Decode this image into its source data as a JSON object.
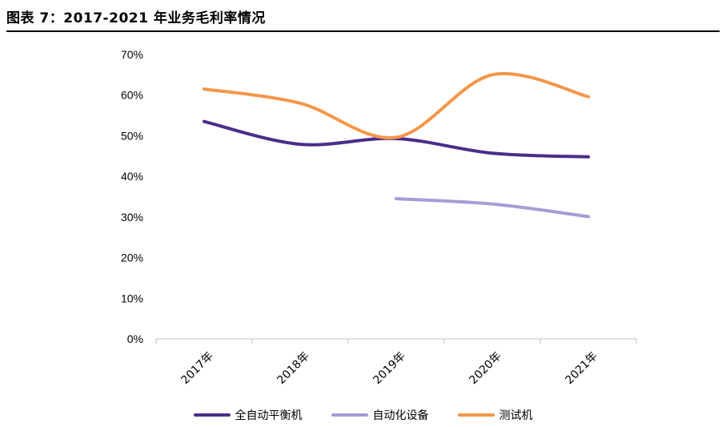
{
  "figure": {
    "title": "图表 7：2017-2021 年业务毛利率情况"
  },
  "chart_data": {
    "type": "line",
    "title": "图表 7：2017-2021 年业务毛利率情况",
    "xlabel": "",
    "ylabel": "",
    "categories": [
      "2017年",
      "2018年",
      "2019年",
      "2020年",
      "2021年"
    ],
    "ylim": [
      0,
      70
    ],
    "yticks": [
      "0%",
      "10%",
      "20%",
      "30%",
      "40%",
      "50%",
      "60%",
      "70%"
    ],
    "ytick_values": [
      0,
      10,
      20,
      30,
      40,
      50,
      60,
      70
    ],
    "grid": false,
    "smooth": true,
    "legend_position": "bottom",
    "series": [
      {
        "name": "全自动平衡机",
        "color": "#4B2C8A",
        "values": [
          53.5,
          47.9,
          49.3,
          45.7,
          44.8
        ]
      },
      {
        "name": "自动化设备",
        "color": "#A99BD5",
        "values": [
          null,
          null,
          34.5,
          33.2,
          30.1
        ]
      },
      {
        "name": "测试机",
        "color": "#F4964A",
        "values": [
          61.5,
          58.0,
          49.6,
          65.0,
          59.6
        ]
      }
    ]
  }
}
